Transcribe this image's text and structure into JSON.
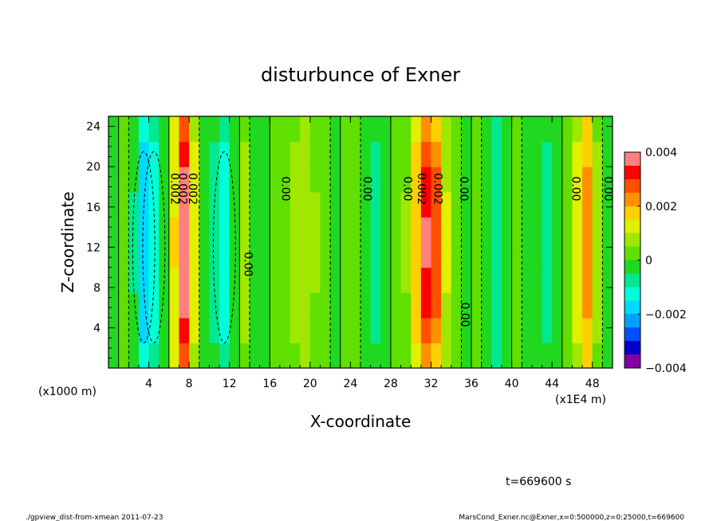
{
  "chart_data": {
    "type": "heatmap",
    "title": "disturbunce of Exner",
    "xlabel": "X-coordinate",
    "ylabel": "Z-coordinate",
    "x_unit_note": "(x1E4 m)",
    "y_unit_note": "(x1000 m)",
    "xlim": [
      0,
      50
    ],
    "ylim": [
      0,
      25
    ],
    "x_ticks": [
      4,
      8,
      12,
      16,
      20,
      24,
      28,
      32,
      36,
      40,
      44,
      48
    ],
    "y_ticks": [
      4,
      8,
      12,
      16,
      20,
      24
    ],
    "colorbar": {
      "min": -0.004,
      "max": 0.004,
      "tick_values": [
        0.004,
        0.002,
        0,
        -0.002,
        -0.004
      ],
      "tick_labels": [
        "0.004",
        "0.002",
        "0",
        "−0.002",
        "−0.004"
      ],
      "colors": [
        "#8000a0",
        "#0000c8",
        "#0050ff",
        "#00a0ff",
        "#00d8ff",
        "#00ffd8",
        "#00e890",
        "#20d820",
        "#60e000",
        "#a0e800",
        "#e0f000",
        "#ffd000",
        "#ff9000",
        "#ff5000",
        "#ff0000",
        "#ff8080"
      ]
    },
    "columns": [
      {
        "x": 0.5,
        "value": -0.0002
      },
      {
        "x": 1.5,
        "value": 0.0001
      },
      {
        "x": 2.5,
        "value": -0.0005
      },
      {
        "x": 3.5,
        "value": -0.0018
      },
      {
        "x": 4.5,
        "value": -0.0012
      },
      {
        "x": 5.5,
        "value": -0.0002
      },
      {
        "x": 6.5,
        "value": 0.0014
      },
      {
        "x": 7.5,
        "value": 0.0036
      },
      {
        "x": 8.5,
        "value": 0.0012
      },
      {
        "x": 9.5,
        "value": -0.0003
      },
      {
        "x": 10.5,
        "value": -0.0006
      },
      {
        "x": 11.5,
        "value": -0.0013
      },
      {
        "x": 12.5,
        "value": -0.0004
      },
      {
        "x": 13.5,
        "value": 0.0006
      },
      {
        "x": 14.5,
        "value": -0.0001
      },
      {
        "x": 15.5,
        "value": -0.0004
      },
      {
        "x": 16.5,
        "value": 0.0002
      },
      {
        "x": 17.5,
        "value": 0.0003
      },
      {
        "x": 18.5,
        "value": 0.0006
      },
      {
        "x": 19.5,
        "value": 0.0009
      },
      {
        "x": 20.5,
        "value": 0.0005
      },
      {
        "x": 21.5,
        "value": 0.0001
      },
      {
        "x": 22.5,
        "value": -0.0002
      },
      {
        "x": 23.5,
        "value": 0.0001
      },
      {
        "x": 24.5,
        "value": 0.0002
      },
      {
        "x": 25.5,
        "value": -0.0002
      },
      {
        "x": 26.5,
        "value": -0.0006
      },
      {
        "x": 27.5,
        "value": -0.0002
      },
      {
        "x": 28.5,
        "value": 0.0001
      },
      {
        "x": 29.5,
        "value": 0.0005
      },
      {
        "x": 30.5,
        "value": 0.0018
      },
      {
        "x": 31.5,
        "value": 0.0032
      },
      {
        "x": 32.5,
        "value": 0.0026
      },
      {
        "x": 33.5,
        "value": 0.001
      },
      {
        "x": 34.5,
        "value": 0.0002
      },
      {
        "x": 35.5,
        "value": -0.0002
      },
      {
        "x": 36.5,
        "value": 0.0001
      },
      {
        "x": 37.5,
        "value": -0.0003
      },
      {
        "x": 38.5,
        "value": -0.0007
      },
      {
        "x": 39.5,
        "value": -0.0003
      },
      {
        "x": 40.5,
        "value": 0.0001
      },
      {
        "x": 41.5,
        "value": -0.0001
      },
      {
        "x": 42.5,
        "value": -0.0004
      },
      {
        "x": 43.5,
        "value": -0.0006
      },
      {
        "x": 44.5,
        "value": -0.0003
      },
      {
        "x": 45.5,
        "value": 0.0003
      },
      {
        "x": 46.5,
        "value": 0.0012
      },
      {
        "x": 47.5,
        "value": 0.0022
      },
      {
        "x": 48.5,
        "value": 0.0006
      },
      {
        "x": 49.5,
        "value": -0.0001
      }
    ],
    "contour_labels": [
      {
        "text": "0.002",
        "x": 6.2,
        "y": 17.8
      },
      {
        "text": "0.002",
        "x": 7.0,
        "y": 17.8
      },
      {
        "text": "0.002",
        "x": 8.0,
        "y": 17.8
      },
      {
        "text": "0.00",
        "x": 13.5,
        "y": 10.3
      },
      {
        "text": "0.00",
        "x": 17.2,
        "y": 17.8
      },
      {
        "text": "0.00",
        "x": 25.3,
        "y": 17.8
      },
      {
        "text": "0.00",
        "x": 29.3,
        "y": 17.8
      },
      {
        "text": "0.002",
        "x": 30.7,
        "y": 17.8
      },
      {
        "text": "0.002",
        "x": 32.3,
        "y": 17.8
      },
      {
        "text": "0.00",
        "x": 34.9,
        "y": 17.8
      },
      {
        "text": "0.00",
        "x": 35.0,
        "y": 5.3
      },
      {
        "text": "0.00",
        "x": 46.0,
        "y": 17.8
      },
      {
        "text": "0.00",
        "x": 49.2,
        "y": 17.8
      }
    ]
  },
  "footer": {
    "time_label": "t=669600 s",
    "script_path": "./gpview_dist-from-xmean   2011-07-23",
    "source_info": "MarsCond_Exner.nc@Exner,x=0:500000,z=0:25000,t=669600"
  }
}
